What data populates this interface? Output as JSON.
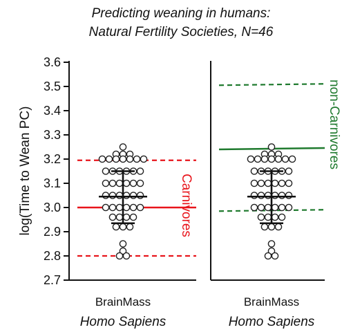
{
  "chart_data": {
    "type": "scatter",
    "title_line1": "Predicting weaning in humans:",
    "title_line2": "Natural Fertility Societies, N=46",
    "ylabel": "log(Time to Wean PC)",
    "ylim": [
      2.7,
      3.6
    ],
    "yticks": [
      "2.7",
      "2.8",
      "2.9",
      "3.0",
      "3.1",
      "3.2",
      "3.3",
      "3.4",
      "3.5",
      "3.6"
    ],
    "grid": false,
    "data_points": [
      3.25,
      3.22,
      3.22,
      3.22,
      3.2,
      3.2,
      3.2,
      3.2,
      3.2,
      3.2,
      3.2,
      3.15,
      3.15,
      3.15,
      3.15,
      3.15,
      3.15,
      3.1,
      3.1,
      3.1,
      3.1,
      3.1,
      3.1,
      3.05,
      3.05,
      3.05,
      3.05,
      3.05,
      3.05,
      3.0,
      3.0,
      3.0,
      3.0,
      3.0,
      3.0,
      2.96,
      2.96,
      2.96,
      2.96,
      2.92,
      2.92,
      2.92,
      2.85,
      2.82,
      2.8,
      2.8
    ],
    "summary": {
      "mean": 3.045,
      "upper": 3.15,
      "lower": 2.935
    },
    "panels": [
      {
        "category": "BrainMass",
        "species": "Homo Sapiens",
        "group_label": "Carnivores",
        "color": "#e8141b",
        "prediction": 3.0,
        "interval": [
          2.8,
          3.195
        ]
      },
      {
        "category": "BrainMass",
        "species": "Homo Sapiens",
        "group_label": "non-Carnivores",
        "color": "#1f7a2e",
        "prediction": 3.24,
        "interval": [
          2.985,
          3.505
        ]
      }
    ]
  }
}
